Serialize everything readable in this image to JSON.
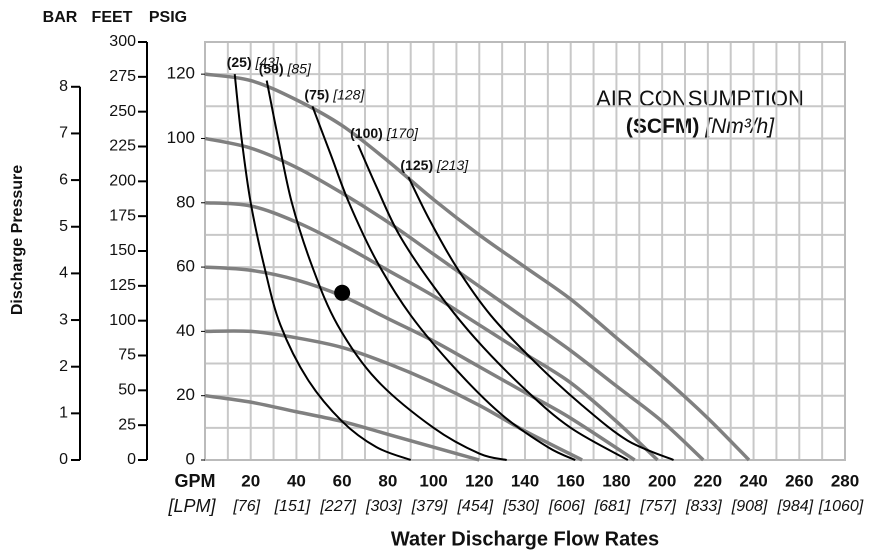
{
  "chart_data": {
    "type": "line",
    "header_labels": [
      "BAR",
      "FEET",
      "PSIG"
    ],
    "ylabel": "Discharge Pressure",
    "xlabel": "Water Discharge Flow Rates",
    "x_unit": "GPM",
    "x2_unit": "[LPM]",
    "title": "AIR CONSUMPTION",
    "title_unit": "(SCFM)",
    "title_unit2": "[Nm³/h]",
    "xlim": [
      0,
      280
    ],
    "xticks": [
      20,
      40,
      60,
      80,
      100,
      120,
      140,
      160,
      180,
      200,
      220,
      240,
      260,
      280
    ],
    "x2tick_labels": [
      "[76]",
      "[151]",
      "[227]",
      "[303]",
      "[379]",
      "[454]",
      "[530]",
      "[606]",
      "[681]",
      "[757]",
      "[833]",
      "[908]",
      "[984]",
      "[1060]"
    ],
    "ylim": [
      0,
      130
    ],
    "yticks": [
      0,
      20,
      40,
      60,
      80,
      100,
      120
    ],
    "feet_lim": [
      0,
      300
    ],
    "feet_ticks": [
      0,
      25,
      50,
      75,
      100,
      125,
      150,
      175,
      200,
      225,
      250,
      275,
      300
    ],
    "bar_lim": [
      0,
      8.96
    ],
    "bar_ticks": [
      0,
      1,
      2,
      3,
      4,
      5,
      6,
      7,
      8
    ],
    "grid": true,
    "grid_step": 10,
    "pressure_curves": [
      {
        "color": "#808080",
        "x": [
          0,
          20,
          40,
          60,
          80,
          100,
          120,
          140,
          160,
          180,
          200,
          220,
          238
        ],
        "values": [
          120,
          118,
          112,
          104,
          93,
          81,
          70,
          60,
          50,
          38,
          26,
          13,
          0
        ]
      },
      {
        "color": "#808080",
        "x": [
          0,
          20,
          40,
          60,
          80,
          100,
          120,
          140,
          160,
          180,
          200,
          218
        ],
        "values": [
          100,
          97,
          91,
          83,
          74,
          64,
          54,
          44,
          34,
          23,
          12,
          0
        ]
      },
      {
        "color": "#808080",
        "x": [
          0,
          20,
          40,
          60,
          80,
          100,
          120,
          140,
          160,
          180,
          198
        ],
        "values": [
          80,
          79,
          74,
          67,
          59,
          51,
          42,
          33,
          24,
          12,
          0
        ]
      },
      {
        "color": "#808080",
        "x": [
          0,
          20,
          40,
          60,
          80,
          100,
          120,
          140,
          160,
          188
        ],
        "values": [
          60,
          59,
          56,
          51,
          44,
          37,
          29,
          21,
          13,
          0
        ]
      },
      {
        "color": "#808080",
        "x": [
          0,
          20,
          40,
          60,
          80,
          100,
          120,
          140,
          165
        ],
        "values": [
          40,
          40,
          38,
          35,
          30,
          24,
          17,
          9,
          0
        ]
      },
      {
        "color": "#808080",
        "x": [
          0,
          20,
          40,
          60,
          80,
          100,
          120
        ],
        "values": [
          20,
          18,
          15,
          12,
          8,
          4,
          0
        ]
      }
    ],
    "air_curves": [
      {
        "name": "(25)",
        "name2": "[43]",
        "color": "#000000",
        "x": [
          13,
          16,
          20,
          26,
          33,
          45,
          60,
          75,
          90
        ],
        "values": [
          120,
          100,
          80,
          60,
          42,
          25,
          12,
          4,
          0
        ]
      },
      {
        "name": "(50)",
        "name2": "[85]",
        "color": "#000000",
        "x": [
          27,
          32,
          38,
          47,
          58,
          75,
          100,
          120,
          132
        ],
        "values": [
          118,
          100,
          80,
          60,
          42,
          25,
          10,
          2,
          0
        ]
      },
      {
        "name": "(75)",
        "name2": "[128]",
        "color": "#000000",
        "x": [
          47,
          55,
          63,
          75,
          90,
          110,
          130,
          150,
          162
        ],
        "values": [
          110,
          95,
          80,
          62,
          45,
          28,
          14,
          4,
          0
        ]
      },
      {
        "name": "(100)",
        "name2": "[170]",
        "color": "#000000",
        "x": [
          67,
          75,
          85,
          100,
          118,
          140,
          160,
          185
        ],
        "values": [
          98,
          85,
          70,
          54,
          38,
          22,
          10,
          0
        ]
      },
      {
        "name": "(125)",
        "name2": "[213]",
        "color": "#000000",
        "x": [
          89,
          98,
          110,
          125,
          145,
          165,
          185,
          205
        ],
        "values": [
          88,
          75,
          60,
          45,
          30,
          17,
          6,
          0
        ]
      }
    ],
    "point": {
      "x": 60,
      "y": 52,
      "color": "#000000"
    }
  }
}
